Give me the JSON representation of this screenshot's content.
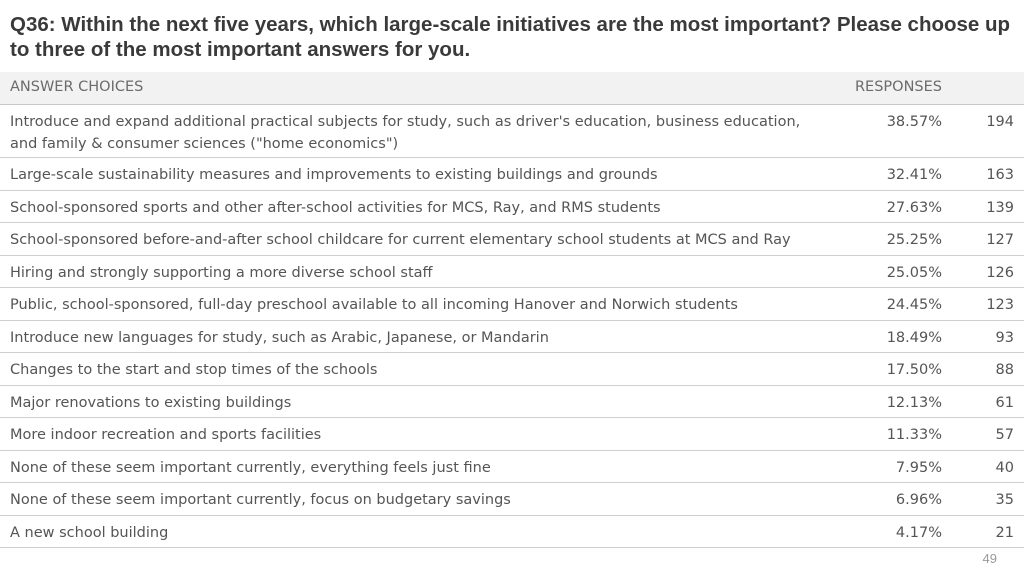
{
  "question": "Q36: Within the next five years, which large-scale initiatives are the most important? Please choose up to three of the most important answers for you.",
  "table": {
    "headers": {
      "choices": "ANSWER CHOICES",
      "responses": "RESPONSES"
    },
    "rows": [
      {
        "choice": "Introduce and expand additional practical subjects for study, such as driver's education, business education, and family & consumer sciences (\"home economics\")",
        "percent": "38.57%",
        "count": "194"
      },
      {
        "choice": "Large-scale sustainability measures and improvements to existing buildings and grounds",
        "percent": "32.41%",
        "count": "163"
      },
      {
        "choice": "School-sponsored sports and other after-school activities for MCS, Ray, and RMS students",
        "percent": "27.63%",
        "count": "139"
      },
      {
        "choice": "School-sponsored before-and-after school childcare for current elementary school students at MCS and Ray",
        "percent": "25.25%",
        "count": "127"
      },
      {
        "choice": "Hiring and strongly supporting a more diverse school staff",
        "percent": "25.05%",
        "count": "126"
      },
      {
        "choice": "Public, school-sponsored, full-day preschool available to all incoming Hanover and Norwich students",
        "percent": "24.45%",
        "count": "123"
      },
      {
        "choice": "Introduce new languages for study, such as Arabic, Japanese, or Mandarin",
        "percent": "18.49%",
        "count": "93"
      },
      {
        "choice": "Changes to the start and stop times of the schools",
        "percent": "17.50%",
        "count": "88"
      },
      {
        "choice": "Major renovations to existing buildings",
        "percent": "12.13%",
        "count": "61"
      },
      {
        "choice": "More indoor recreation and sports facilities",
        "percent": "11.33%",
        "count": "57"
      },
      {
        "choice": "None of these seem important currently, everything feels just fine",
        "percent": "7.95%",
        "count": "40"
      },
      {
        "choice": "None of these seem important currently, focus on budgetary savings",
        "percent": "6.96%",
        "count": "35"
      },
      {
        "choice": "A new school building",
        "percent": "4.17%",
        "count": "21"
      }
    ]
  },
  "page_number": "49"
}
